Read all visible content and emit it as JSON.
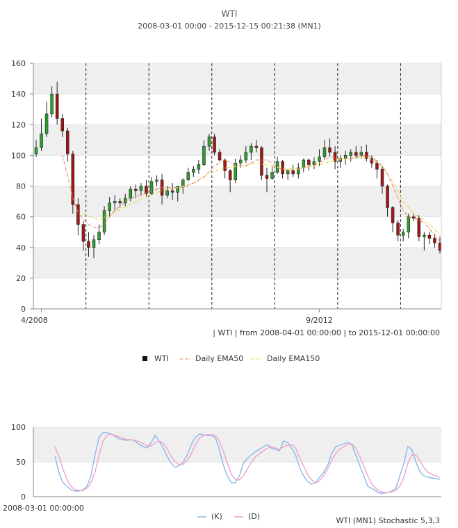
{
  "header": {
    "title": "WTI",
    "subtitle": "2008-03-01 00:00 - 2015-12-15 00:21:38 (MN1)"
  },
  "main_chart": {
    "x_ticks": [
      {
        "label": "4/2008",
        "date": "2008-04"
      },
      {
        "label": "9/2012",
        "date": "2012-09"
      }
    ],
    "y_ticks": [
      "0",
      "20",
      "40",
      "60",
      "80",
      "100",
      "120",
      "140",
      "160"
    ],
    "range_caption": "| WTI | from 2008-04-01 00:00:00 | to 2015-12-01 00:00:00",
    "colors": {
      "up": "#2e9e2e",
      "down": "#a01818",
      "ema50": "#e8845a",
      "ema150": "#e0d43a",
      "band": "#efefef"
    }
  },
  "legend": {
    "items": [
      {
        "label": "WTI",
        "marker": "square-black"
      },
      {
        "label": "Daily EMA50",
        "marker": "dash-orange"
      },
      {
        "label": "Daily EMA150",
        "marker": "dash-yellow"
      }
    ]
  },
  "stoch": {
    "y_ticks": [
      "0",
      "50",
      "100"
    ],
    "x_label": "2008-03-01 00:00:00",
    "caption": "WTI (MN1) Stochastic 5,3,3",
    "legend": [
      {
        "label": "(K)",
        "color": "#8ab8e8"
      },
      {
        "label": "(D)",
        "color": "#f0a0c8"
      }
    ]
  },
  "chart_data": [
    {
      "type": "candlestick",
      "title": "WTI",
      "x_start": "2008-03",
      "x_interval": "1 month",
      "ylim": [
        0,
        160
      ],
      "grid": true,
      "ohlc": [
        [
          101,
          110,
          99,
          105
        ],
        [
          105,
          124,
          103,
          114
        ],
        [
          114,
          135,
          112,
          127
        ],
        [
          127,
          145,
          125,
          140
        ],
        [
          140,
          148,
          120,
          124
        ],
        [
          124,
          127,
          112,
          116
        ],
        [
          116,
          118,
          96,
          101
        ],
        [
          101,
          103,
          62,
          68
        ],
        [
          68,
          72,
          48,
          55
        ],
        [
          55,
          57,
          38,
          44
        ],
        [
          44,
          50,
          34,
          40
        ],
        [
          40,
          48,
          33,
          45
        ],
        [
          45,
          55,
          42,
          50
        ],
        [
          50,
          67,
          48,
          64
        ],
        [
          64,
          73,
          60,
          69
        ],
        [
          69,
          74,
          64,
          70
        ],
        [
          70,
          72,
          66,
          69
        ],
        [
          69,
          75,
          67,
          72
        ],
        [
          72,
          80,
          70,
          78
        ],
        [
          78,
          81,
          72,
          77
        ],
        [
          77,
          82,
          74,
          80
        ],
        [
          80,
          84,
          73,
          75
        ],
        [
          75,
          86,
          74,
          83
        ],
        [
          83,
          87,
          80,
          84
        ],
        [
          84,
          88,
          68,
          74
        ],
        [
          74,
          80,
          72,
          77
        ],
        [
          77,
          82,
          71,
          76
        ],
        [
          76,
          80,
          70,
          80
        ],
        [
          80,
          85,
          75,
          84
        ],
        [
          84,
          92,
          83,
          89
        ],
        [
          89,
          93,
          86,
          91
        ],
        [
          91,
          97,
          88,
          94
        ],
        [
          94,
          110,
          93,
          106
        ],
        [
          106,
          114,
          103,
          112
        ],
        [
          112,
          114,
          100,
          102
        ],
        [
          102,
          104,
          96,
          97
        ],
        [
          97,
          98,
          85,
          90
        ],
        [
          90,
          91,
          76,
          84
        ],
        [
          84,
          98,
          82,
          95
        ],
        [
          95,
          100,
          92,
          97
        ],
        [
          97,
          106,
          95,
          102
        ],
        [
          102,
          108,
          97,
          106
        ],
        [
          106,
          110,
          102,
          105
        ],
        [
          105,
          106,
          84,
          87
        ],
        [
          87,
          92,
          76,
          85
        ],
        [
          85,
          93,
          84,
          89
        ],
        [
          89,
          99,
          88,
          96
        ],
        [
          96,
          97,
          85,
          88
        ],
        [
          88,
          91,
          84,
          90
        ],
        [
          90,
          94,
          86,
          88
        ],
        [
          88,
          95,
          85,
          92
        ],
        [
          92,
          98,
          89,
          97
        ],
        [
          97,
          98,
          90,
          94
        ],
        [
          94,
          99,
          91,
          96
        ],
        [
          96,
          104,
          93,
          99
        ],
        [
          99,
          110,
          97,
          105
        ],
        [
          105,
          111,
          99,
          102
        ],
        [
          102,
          106,
          91,
          96
        ],
        [
          96,
          100,
          92,
          98
        ],
        [
          98,
          103,
          94,
          100
        ],
        [
          100,
          104,
          96,
          102
        ],
        [
          102,
          106,
          98,
          100
        ],
        [
          100,
          106,
          98,
          102
        ],
        [
          102,
          107,
          96,
          98
        ],
        [
          98,
          100,
          92,
          95
        ],
        [
          95,
          97,
          85,
          91
        ],
        [
          91,
          93,
          75,
          80
        ],
        [
          80,
          81,
          60,
          66
        ],
        [
          66,
          67,
          50,
          56
        ],
        [
          56,
          58,
          44,
          48
        ],
        [
          48,
          52,
          44,
          50
        ],
        [
          50,
          62,
          46,
          60
        ],
        [
          60,
          62,
          57,
          59
        ],
        [
          59,
          61,
          44,
          47
        ],
        [
          47,
          50,
          38,
          48
        ],
        [
          48,
          50,
          42,
          46
        ],
        [
          46,
          49,
          40,
          43
        ],
        [
          43,
          47,
          36,
          38
        ]
      ],
      "ema50": [
        [
          5,
          100
        ],
        [
          6,
          87
        ],
        [
          7,
          72
        ],
        [
          8,
          63
        ],
        [
          9,
          58
        ],
        [
          10,
          55
        ],
        [
          11,
          53
        ],
        [
          12,
          53
        ],
        [
          13,
          55
        ],
        [
          14,
          60
        ],
        [
          15,
          64
        ],
        [
          16,
          67
        ],
        [
          17,
          70
        ],
        [
          18,
          72
        ],
        [
          20,
          74
        ],
        [
          22,
          77
        ],
        [
          24,
          79
        ],
        [
          26,
          79
        ],
        [
          28,
          79
        ],
        [
          30,
          82
        ],
        [
          32,
          86
        ],
        [
          34,
          93
        ],
        [
          36,
          97
        ],
        [
          38,
          94
        ],
        [
          40,
          93
        ],
        [
          42,
          97
        ],
        [
          44,
          97
        ],
        [
          46,
          92
        ],
        [
          48,
          90
        ],
        [
          50,
          91
        ],
        [
          52,
          93
        ],
        [
          54,
          95
        ],
        [
          56,
          99
        ],
        [
          58,
          98
        ],
        [
          60,
          98
        ],
        [
          62,
          100
        ],
        [
          64,
          99
        ],
        [
          66,
          93
        ],
        [
          67,
          88
        ],
        [
          68,
          80
        ],
        [
          69,
          72
        ],
        [
          70,
          64
        ],
        [
          71,
          60
        ],
        [
          72,
          59
        ],
        [
          73,
          58
        ],
        [
          74,
          56
        ],
        [
          75,
          52
        ],
        [
          76,
          48
        ],
        [
          77,
          44
        ]
      ],
      "ema150": [
        [
          9,
          62
        ],
        [
          12,
          58
        ],
        [
          15,
          63
        ],
        [
          18,
          68
        ],
        [
          21,
          73
        ],
        [
          24,
          77
        ],
        [
          27,
          79
        ],
        [
          30,
          82
        ],
        [
          33,
          88
        ],
        [
          36,
          92
        ],
        [
          39,
          93
        ],
        [
          42,
          95
        ],
        [
          45,
          93
        ],
        [
          48,
          91
        ],
        [
          51,
          92
        ],
        [
          54,
          94
        ],
        [
          57,
          97
        ],
        [
          60,
          98
        ],
        [
          63,
          99
        ],
        [
          66,
          93
        ],
        [
          68,
          83
        ],
        [
          70,
          70
        ],
        [
          72,
          62
        ],
        [
          74,
          58
        ],
        [
          76,
          52
        ],
        [
          77,
          48
        ]
      ]
    },
    {
      "type": "line",
      "title": "WTI (MN1) Stochastic 5,3,3",
      "ylim": [
        0,
        100
      ],
      "series": [
        {
          "name": "(K)",
          "values": [
            58,
            35,
            20,
            15,
            10,
            8,
            8,
            10,
            15,
            30,
            60,
            85,
            92,
            92,
            90,
            87,
            83,
            82,
            81,
            82,
            80,
            75,
            72,
            70,
            78,
            88,
            80,
            70,
            58,
            48,
            42,
            45,
            50,
            60,
            75,
            85,
            90,
            89,
            88,
            88,
            85,
            68,
            45,
            30,
            20,
            20,
            30,
            48,
            55,
            60,
            65,
            68,
            72,
            75,
            70,
            68,
            66,
            80,
            78,
            70,
            60,
            42,
            30,
            22,
            18,
            20,
            28,
            35,
            45,
            62,
            72,
            74,
            76,
            78,
            75,
            60,
            45,
            30,
            15,
            12,
            8,
            5,
            5,
            6,
            8,
            12,
            30,
            48,
            72,
            68,
            50,
            36,
            30,
            28,
            27,
            26,
            25
          ]
        },
        {
          "name": "(D)",
          "values": [
            72,
            58,
            40,
            25,
            15,
            10,
            9,
            9,
            12,
            20,
            35,
            60,
            80,
            88,
            90,
            88,
            86,
            84,
            82,
            82,
            81,
            79,
            76,
            73,
            73,
            78,
            80,
            77,
            69,
            58,
            50,
            46,
            47,
            52,
            62,
            74,
            84,
            88,
            89,
            89,
            88,
            80,
            65,
            48,
            32,
            25,
            24,
            30,
            40,
            50,
            57,
            62,
            66,
            70,
            72,
            70,
            68,
            72,
            74,
            75,
            70,
            56,
            44,
            32,
            24,
            20,
            23,
            30,
            40,
            52,
            62,
            68,
            72,
            75,
            76,
            70,
            58,
            44,
            30,
            18,
            12,
            8,
            6,
            6,
            7,
            9,
            15,
            28,
            48,
            60,
            60,
            52,
            42,
            35,
            32,
            30,
            28
          ]
        }
      ]
    }
  ]
}
